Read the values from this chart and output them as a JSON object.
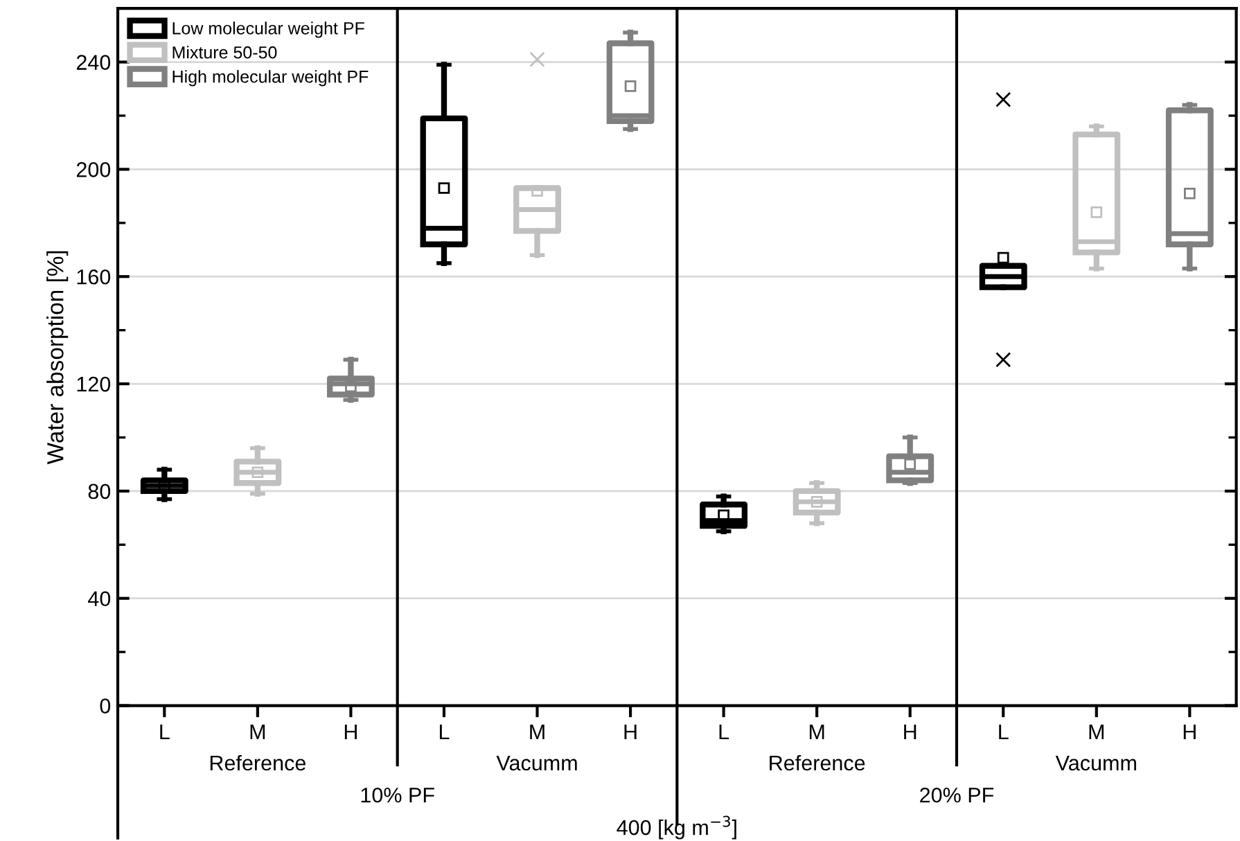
{
  "chart_data": {
    "type": "box",
    "ylabel": "Water absorption [%]",
    "categories": [
      "L",
      "M",
      "H",
      "L",
      "M",
      "H",
      "L",
      "M",
      "H",
      "L",
      "M",
      "H"
    ],
    "series": [
      {
        "name": "Low molecular weight PF",
        "color": "#000000",
        "boxes": [
          {
            "low": 77,
            "q1": 80,
            "median": 82,
            "q3": 84,
            "high": 88,
            "mean": 82
          },
          null,
          null,
          {
            "low": 165,
            "q1": 172,
            "median": 178,
            "q3": 219,
            "high": 239,
            "mean": 193
          },
          null,
          null,
          {
            "low": 65,
            "q1": 67,
            "median": 69,
            "q3": 75,
            "high": 78,
            "mean": 71
          },
          null,
          null,
          {
            "low": 156,
            "q1": 156,
            "median": 160,
            "q3": 164,
            "high": 164,
            "mean": 167,
            "outliers": [
              226,
              129
            ]
          },
          null,
          null
        ]
      },
      {
        "name": "Mixture 50-50",
        "color": "#c0c0c0",
        "boxes": [
          null,
          {
            "low": 79,
            "q1": 83,
            "median": 87,
            "q3": 91,
            "high": 96,
            "mean": 87
          },
          null,
          null,
          {
            "low": 168,
            "q1": 177,
            "median": 185,
            "q3": 193,
            "high": 193,
            "mean": 192,
            "outliers": [
              241
            ]
          },
          null,
          null,
          {
            "low": 68,
            "q1": 72,
            "median": 76,
            "q3": 80,
            "high": 83,
            "mean": 76
          },
          null,
          null,
          {
            "low": 163,
            "q1": 169,
            "median": 173,
            "q3": 213,
            "high": 216,
            "mean": 184
          },
          null
        ]
      },
      {
        "name": "High molecular weight PF",
        "color": "#808080",
        "boxes": [
          null,
          null,
          {
            "low": 114,
            "q1": 116,
            "median": 120,
            "q3": 122,
            "high": 129,
            "mean": 119
          },
          null,
          null,
          {
            "low": 215,
            "q1": 218,
            "median": 220,
            "q3": 247,
            "high": 251,
            "mean": 231
          },
          null,
          null,
          {
            "low": 83,
            "q1": 84,
            "median": 87,
            "q3": 93,
            "high": 100,
            "mean": 90
          },
          null,
          null,
          {
            "low": 163,
            "q1": 172,
            "median": 176,
            "q3": 222,
            "high": 224,
            "mean": 191
          }
        ]
      }
    ],
    "ylim": [
      0,
      260
    ],
    "yticks": [
      0,
      40,
      80,
      120,
      160,
      200,
      240
    ],
    "grid": "y",
    "legend": "top left",
    "annotations": [
      "Reference",
      "Vacumm",
      "Reference",
      "Vacumm",
      "10% PF",
      "20% PF",
      "400 [kg m$^{−3}$]"
    ]
  }
}
